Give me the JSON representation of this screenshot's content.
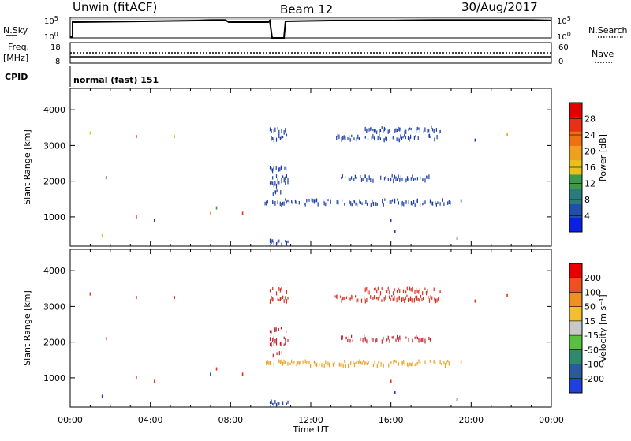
{
  "header": {
    "station": "Unwin (fitACF)",
    "beam": "Beam 12",
    "date": "30/Aug/2017"
  },
  "noise_panel": {
    "left_label": "N.Sky",
    "left_ticks": [
      "10^5",
      "10^0"
    ],
    "right_label": "N.Search",
    "right_ticks": [
      "10^5",
      "10^0"
    ]
  },
  "freq_panel": {
    "left_label_line1": "Freq.",
    "left_label_line2": "[MHz]",
    "left_ticks": [
      "18",
      "8"
    ],
    "right_label": "Nave",
    "right_ticks": [
      "60",
      "0"
    ]
  },
  "cpid": {
    "label": "CPID",
    "value": "normal (fast) 151"
  },
  "chart_data": [
    {
      "type": "heatmap",
      "name": "power",
      "ylabel": "Slant Range [km]",
      "xlabel": "",
      "ylim": [
        180,
        4600
      ],
      "xlim": [
        0,
        24
      ],
      "yticks": [
        "1000",
        "2000",
        "3000",
        "4000"
      ],
      "ytick_values": [
        1000,
        2000,
        3000,
        4000
      ],
      "colorbar": {
        "label": "Power [dB]",
        "ticks": [
          "4",
          "8",
          "12",
          "16",
          "20",
          "24",
          "28"
        ],
        "tick_values": [
          4,
          8,
          12,
          16,
          20,
          24,
          28
        ],
        "range": [
          0,
          32
        ],
        "colors": [
          "#0a1fe6",
          "#1f4fa8",
          "#2c7a7a",
          "#3d9a4a",
          "#e8c020",
          "#f0a020",
          "#f07010",
          "#e83018",
          "#e00000"
        ]
      },
      "bands": [
        {
          "t0": 9.95,
          "t1": 10.9,
          "range": 3450,
          "color": "#1f3fa8"
        },
        {
          "t0": 9.95,
          "t1": 10.9,
          "range": 3230,
          "color": "#1f3fa8"
        },
        {
          "t0": 14.7,
          "t1": 18.5,
          "range": 3450,
          "color": "#1f3fa8"
        },
        {
          "t0": 13.2,
          "t1": 18.4,
          "range": 3230,
          "color": "#1f3fa8"
        },
        {
          "t0": 9.95,
          "t1": 10.9,
          "range": 2100,
          "color": "#1f3fa8"
        },
        {
          "t0": 9.95,
          "t1": 10.9,
          "range": 1950,
          "color": "#1f3fa8"
        },
        {
          "t0": 9.95,
          "t1": 10.8,
          "range": 2350,
          "color": "#1f3fa8"
        },
        {
          "t0": 13.5,
          "t1": 18.0,
          "range": 2100,
          "color": "#1f3fa8"
        },
        {
          "t0": 9.7,
          "t1": 19.0,
          "range": 1420,
          "color": "#1f3fa8"
        },
        {
          "t0": 9.95,
          "t1": 10.9,
          "range": 300,
          "color": "#1f3fa8"
        },
        {
          "t0": 10.1,
          "t1": 10.6,
          "range": 1700,
          "color": "#1f3fa8"
        }
      ],
      "points": [
        {
          "t": 1.0,
          "range": 3350,
          "color": "#e8c020"
        },
        {
          "t": 3.3,
          "range": 3250,
          "color": "#e83018"
        },
        {
          "t": 5.2,
          "range": 3250,
          "color": "#e8c020"
        },
        {
          "t": 7.3,
          "range": 1250,
          "color": "#3d9a4a"
        },
        {
          "t": 7.0,
          "range": 1100,
          "color": "#f0a020"
        },
        {
          "t": 1.8,
          "range": 2100,
          "color": "#1f3fa8"
        },
        {
          "t": 3.3,
          "range": 1000,
          "color": "#e83018"
        },
        {
          "t": 21.8,
          "range": 3300,
          "color": "#f0a020"
        },
        {
          "t": 20.2,
          "range": 3150,
          "color": "#1f3fa8"
        },
        {
          "t": 19.5,
          "range": 1450,
          "color": "#1f3fa8"
        },
        {
          "t": 8.6,
          "range": 1100,
          "color": "#e83018"
        },
        {
          "t": 1.6,
          "range": 480,
          "color": "#e8c020"
        },
        {
          "t": 4.2,
          "range": 900,
          "color": "#1f3fa8"
        },
        {
          "t": 16.0,
          "range": 900,
          "color": "#1f3fa8"
        },
        {
          "t": 16.2,
          "range": 600,
          "color": "#1f3fa8"
        },
        {
          "t": 19.3,
          "range": 400,
          "color": "#1f3fa8"
        }
      ]
    },
    {
      "type": "heatmap",
      "name": "velocity",
      "ylabel": "Slant Range [km]",
      "xlabel": "Time UT",
      "ylim": [
        180,
        4600
      ],
      "xlim": [
        0,
        24
      ],
      "yticks": [
        "1000",
        "2000",
        "3000",
        "4000"
      ],
      "ytick_values": [
        1000,
        2000,
        3000,
        4000
      ],
      "xticks": [
        "00:00",
        "04:00",
        "08:00",
        "12:00",
        "16:00",
        "20:00",
        "00:00"
      ],
      "xtick_values": [
        0,
        4,
        8,
        12,
        16,
        20,
        24
      ],
      "colorbar": {
        "label": "Velocity [m s⁻¹]",
        "ticks": [
          "200",
          "100",
          "50",
          "15",
          "-15",
          "-50",
          "-100",
          "-200"
        ],
        "colors": [
          "#1f3fe0",
          "#2a5a9a",
          "#2e8a6a",
          "#5ac040",
          "#c8c8c8",
          "#f0c030",
          "#f09020",
          "#f05020",
          "#e80000"
        ]
      },
      "bands": [
        {
          "t0": 9.95,
          "t1": 10.9,
          "range": 3450,
          "color": "#d83020"
        },
        {
          "t0": 9.95,
          "t1": 10.9,
          "range": 3230,
          "color": "#d83020"
        },
        {
          "t0": 14.7,
          "t1": 18.5,
          "range": 3450,
          "color": "#d83020"
        },
        {
          "t0": 13.2,
          "t1": 18.4,
          "range": 3230,
          "color": "#d83020"
        },
        {
          "t0": 9.95,
          "t1": 10.9,
          "range": 2100,
          "color": "#c02030"
        },
        {
          "t0": 9.95,
          "t1": 10.9,
          "range": 1950,
          "color": "#c02030"
        },
        {
          "t0": 9.95,
          "t1": 10.8,
          "range": 2350,
          "color": "#c02030"
        },
        {
          "t0": 13.5,
          "t1": 18.0,
          "range": 2100,
          "color": "#c02030"
        },
        {
          "t0": 9.7,
          "t1": 19.0,
          "range": 1420,
          "color": "#f0a020"
        },
        {
          "t0": 9.95,
          "t1": 10.9,
          "range": 300,
          "color": "#1f3fa8"
        },
        {
          "t0": 10.1,
          "t1": 10.6,
          "range": 1700,
          "color": "#c02030"
        }
      ],
      "points": [
        {
          "t": 1.0,
          "range": 3350,
          "color": "#e83018"
        },
        {
          "t": 3.3,
          "range": 3250,
          "color": "#e83018"
        },
        {
          "t": 5.2,
          "range": 3250,
          "color": "#e83018"
        },
        {
          "t": 7.3,
          "range": 1250,
          "color": "#e83018"
        },
        {
          "t": 7.0,
          "range": 1100,
          "color": "#1f3fa8"
        },
        {
          "t": 1.8,
          "range": 2100,
          "color": "#e83018"
        },
        {
          "t": 3.3,
          "range": 1000,
          "color": "#e83018"
        },
        {
          "t": 21.8,
          "range": 3300,
          "color": "#e83018"
        },
        {
          "t": 20.2,
          "range": 3150,
          "color": "#e83018"
        },
        {
          "t": 19.5,
          "range": 1450,
          "color": "#f0a020"
        },
        {
          "t": 8.6,
          "range": 1100,
          "color": "#e83018"
        },
        {
          "t": 1.6,
          "range": 480,
          "color": "#1f3fa8"
        },
        {
          "t": 4.2,
          "range": 900,
          "color": "#e83018"
        },
        {
          "t": 16.0,
          "range": 900,
          "color": "#e83018"
        },
        {
          "t": 16.2,
          "range": 600,
          "color": "#1f3fa8"
        },
        {
          "t": 19.3,
          "range": 400,
          "color": "#1f3fa8"
        }
      ]
    }
  ]
}
